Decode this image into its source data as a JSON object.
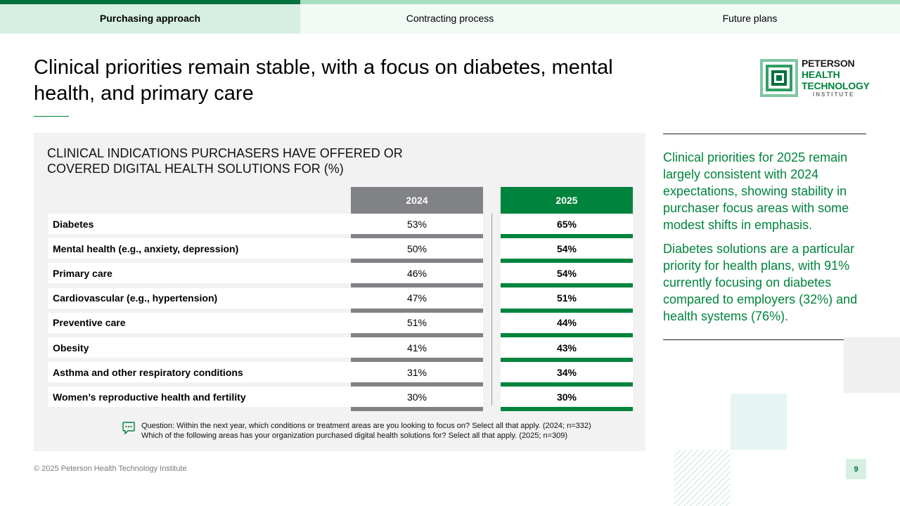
{
  "tabs": [
    {
      "label": "Purchasing approach"
    },
    {
      "label": "Contracting process"
    },
    {
      "label": "Future plans"
    }
  ],
  "page_title": "Clinical priorities remain stable, with a focus on diabetes, mental health, and primary care",
  "logo": {
    "line1": "PETERSON",
    "line2": "HEALTH",
    "line3": "TECHNOLOGY",
    "line4": "INSTITUTE"
  },
  "chart": {
    "title": "CLINICAL INDICATIONS PURCHASERS HAVE OFFERED OR COVERED DIGITAL HEALTH SOLUTIONS FOR (%)",
    "col_2024": "2024",
    "col_2025": "2025",
    "rows": [
      {
        "label": "Diabetes",
        "v2024": "53%",
        "v2025": "65%"
      },
      {
        "label": "Mental health (e.g., anxiety, depression)",
        "v2024": "50%",
        "v2025": "54%"
      },
      {
        "label": "Primary care",
        "v2024": "46%",
        "v2025": "54%"
      },
      {
        "label": "Cardiovascular (e.g., hypertension)",
        "v2024": "47%",
        "v2025": "51%"
      },
      {
        "label": "Preventive care",
        "v2024": "51%",
        "v2025": "44%"
      },
      {
        "label": "Obesity",
        "v2024": "41%",
        "v2025": "43%"
      },
      {
        "label": "Asthma and other respiratory conditions",
        "v2024": "31%",
        "v2025": "34%"
      },
      {
        "label": "Women’s reproductive health and fertility",
        "v2024": "30%",
        "v2025": "30%"
      }
    ],
    "question_line1": "Question: Within the next year, which conditions or treatment areas are you looking to focus on? Select all that apply. (2024; n=332)",
    "question_line2": "Which of the following areas has your organization purchased digital health solutions for? Select all that apply. (2025; n=309)"
  },
  "side": {
    "para1": "Clinical priorities for 2025 remain largely consistent with 2024 expectations, showing stability in purchaser focus areas with some modest shifts in emphasis.",
    "para2": "Diabetes solutions are a particular priority for health plans, with 91% currently focusing on diabetes compared to employers (32%) and health systems (76%)."
  },
  "footer": "© 2025 Peterson Health Technology Institute",
  "page_number": "9",
  "colors": {
    "green": "#00843d",
    "gray": "#808285",
    "tab_active": "#d6efe2"
  }
}
